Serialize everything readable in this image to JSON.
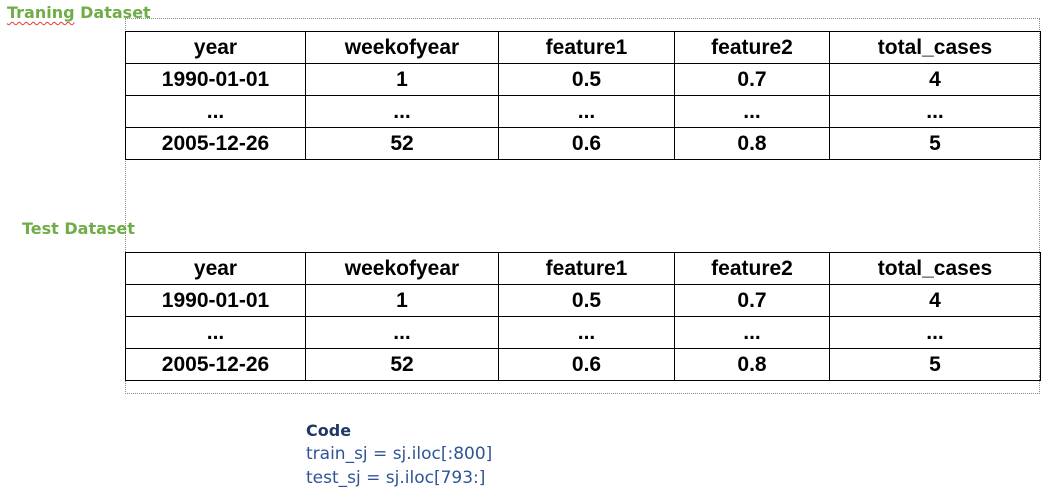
{
  "training": {
    "label_word1": "Traning",
    "label_word2": "Dataset",
    "columns": [
      "year",
      "weekofyear",
      "feature1",
      "feature2",
      "total_cases"
    ],
    "rows": [
      [
        "1990-01-01",
        "1",
        "0.5",
        "0.7",
        "4"
      ],
      [
        "...",
        "...",
        "...",
        "...",
        "..."
      ],
      [
        "2005-12-26",
        "52",
        "0.6",
        "0.8",
        "5"
      ]
    ]
  },
  "test": {
    "label": "Test Dataset",
    "columns": [
      "year",
      "weekofyear",
      "feature1",
      "feature2",
      "total_cases"
    ],
    "rows": [
      [
        "1990-01-01",
        "1",
        "0.5",
        "0.7",
        "4"
      ],
      [
        "...",
        "...",
        "...",
        "...",
        "..."
      ],
      [
        "2005-12-26",
        "52",
        "0.6",
        "0.8",
        "5"
      ]
    ]
  },
  "code": {
    "title": "Code",
    "line1": "train_sj = sj.iloc[:800]",
    "line2": "test_sj = sj.iloc[793:]"
  },
  "colors": {
    "label_green": "#70ad47",
    "code_blue": "#2f5597",
    "spellcheck_red": "#e03c31"
  }
}
